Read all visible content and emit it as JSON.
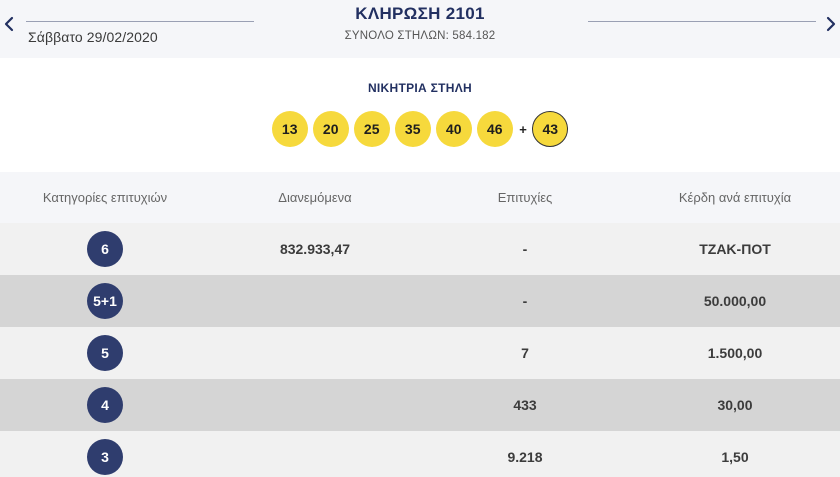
{
  "header": {
    "date": "Σάββατο 29/02/2020",
    "draw_title": "ΚΛΗΡΩΣΗ 2101",
    "columns_total": "ΣΥΝΟΛΟ ΣΤΗΛΩΝ: 584.182"
  },
  "winning": {
    "title": "ΝΙΚΗΤΡΙΑ ΣΤΗΛΗ",
    "numbers": [
      "13",
      "20",
      "25",
      "35",
      "40",
      "46"
    ],
    "plus": "+",
    "bonus": "43"
  },
  "colors": {
    "navy": "#223061",
    "ball_yellow": "#f6d93c",
    "category_badge": "#2f3d6e"
  },
  "table": {
    "headers": [
      "Κατηγορίες επιτυχιών",
      "Διανεμόμενα",
      "Επιτυχίες",
      "Κέρδη ανά επιτυχία"
    ],
    "rows": [
      {
        "category": "6",
        "distributed": "832.933,47",
        "winners": "-",
        "prize": "ΤΖΑΚ-ΠΟΤ"
      },
      {
        "category": "5+1",
        "distributed": "",
        "winners": "-",
        "prize": "50.000,00"
      },
      {
        "category": "5",
        "distributed": "",
        "winners": "7",
        "prize": "1.500,00"
      },
      {
        "category": "4",
        "distributed": "",
        "winners": "433",
        "prize": "30,00"
      },
      {
        "category": "3",
        "distributed": "",
        "winners": "9.218",
        "prize": "1,50"
      }
    ]
  },
  "icons": {
    "prev": "chevron-left-icon",
    "next": "chevron-right-icon"
  }
}
